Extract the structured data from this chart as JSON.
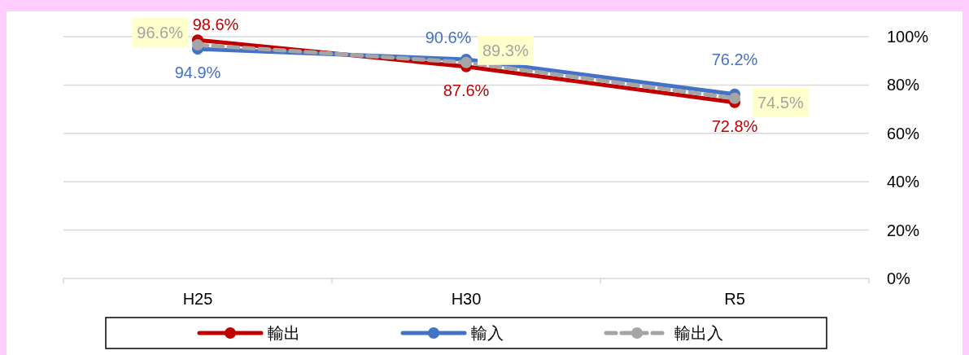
{
  "chart_data": {
    "type": "line",
    "categories": [
      "H25",
      "H30",
      "R5"
    ],
    "series": [
      {
        "name": "輸出",
        "color": "#c00000",
        "values": [
          98.6,
          87.6,
          72.8
        ],
        "value_labels": [
          "98.6%",
          "87.6%",
          "72.8%"
        ],
        "line_style": "solid"
      },
      {
        "name": "輸入",
        "color": "#4472c4",
        "values": [
          94.9,
          90.6,
          76.2
        ],
        "value_labels": [
          "94.9%",
          "90.6%",
          "76.2%"
        ],
        "line_style": "solid"
      },
      {
        "name": "輸出入",
        "color": "#a5a5a5",
        "values": [
          96.6,
          89.3,
          74.5
        ],
        "value_labels": [
          "96.6%",
          "89.3%",
          "74.5%"
        ],
        "line_style": "dashed"
      }
    ],
    "ylim": [
      0,
      100
    ],
    "yticks": [
      {
        "value": 0,
        "label": "0%"
      },
      {
        "value": 20,
        "label": "20%"
      },
      {
        "value": 40,
        "label": "40%"
      },
      {
        "value": 60,
        "label": "60%"
      },
      {
        "value": 80,
        "label": "80%"
      },
      {
        "value": 100,
        "label": "100%"
      }
    ],
    "grid": "y",
    "legend": "bottom",
    "marker": "circle"
  }
}
